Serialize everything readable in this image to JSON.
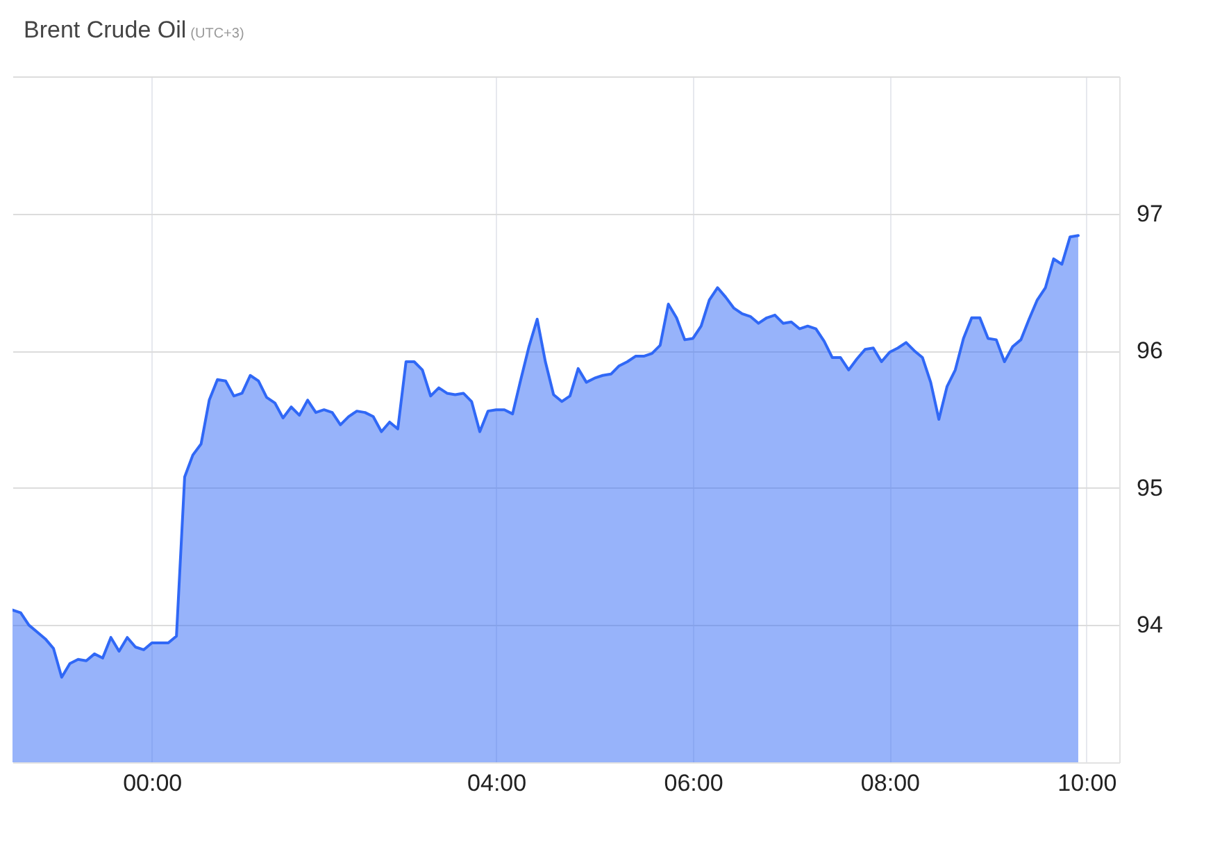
{
  "chart_data": {
    "type": "area",
    "title": "Brent Crude Oil",
    "subtitle": "(UTC+3)",
    "categories": [
      null,
      null,
      null,
      null,
      null,
      null,
      null,
      null,
      null,
      null,
      null,
      null,
      null,
      null,
      null,
      null,
      null,
      "00:00",
      null,
      null,
      null,
      null,
      null,
      null,
      null,
      null,
      null,
      null,
      null,
      null,
      null,
      null,
      null,
      null,
      null,
      null,
      null,
      null,
      null,
      null,
      null,
      null,
      null,
      null,
      null,
      null,
      null,
      null,
      null,
      null,
      null,
      null,
      null,
      null,
      null,
      null,
      null,
      null,
      null,
      "04:00",
      null,
      null,
      null,
      null,
      null,
      null,
      null,
      null,
      null,
      null,
      null,
      null,
      null,
      null,
      null,
      null,
      null,
      null,
      null,
      null,
      null,
      null,
      null,
      "06:00",
      null,
      null,
      null,
      null,
      null,
      null,
      null,
      null,
      null,
      null,
      null,
      null,
      null,
      null,
      null,
      null,
      null,
      null,
      null,
      null,
      null,
      null,
      null,
      "08:00",
      null,
      null,
      null,
      null,
      null,
      null,
      null,
      null,
      null,
      null,
      null,
      null,
      null,
      null,
      null,
      null,
      null,
      null,
      null,
      null,
      null,
      null,
      null,
      "10:00"
    ],
    "series": [
      {
        "color": "#3068f6",
        "values": [
          94.11,
          94.09,
          94.0,
          93.95,
          93.9,
          93.83,
          93.62,
          93.72,
          93.75,
          93.74,
          93.79,
          93.76,
          93.91,
          93.81,
          93.91,
          93.84,
          93.82,
          93.87,
          93.87,
          93.87,
          93.92,
          95.08,
          95.24,
          95.32,
          95.64,
          95.79,
          95.78,
          95.67,
          95.69,
          95.82,
          95.78,
          95.66,
          95.62,
          95.51,
          95.59,
          95.53,
          95.64,
          95.55,
          95.57,
          95.55,
          95.46,
          95.52,
          95.56,
          95.55,
          95.52,
          95.41,
          95.48,
          95.43,
          95.92,
          95.92,
          95.86,
          95.67,
          95.73,
          95.69,
          95.68,
          95.69,
          95.63,
          95.41,
          95.56,
          95.57,
          95.57,
          95.54,
          95.79,
          96.03,
          96.23,
          95.92,
          95.68,
          95.63,
          95.67,
          95.87,
          95.77,
          95.8,
          95.82,
          95.83,
          95.89,
          95.92,
          95.96,
          95.96,
          95.98,
          96.04,
          96.34,
          96.24,
          96.08,
          96.09,
          96.18,
          96.37,
          96.46,
          96.39,
          96.31,
          96.27,
          96.25,
          96.2,
          96.24,
          96.26,
          96.2,
          96.21,
          96.16,
          96.18,
          96.16,
          96.07,
          95.95,
          95.95,
          95.86,
          95.94,
          96.01,
          96.02,
          95.92,
          95.99,
          96.02,
          96.06,
          96.0,
          95.95,
          95.77,
          95.5,
          95.74,
          95.86,
          96.09,
          96.24,
          96.24,
          96.09,
          96.08,
          95.92,
          96.03,
          96.08,
          96.23,
          96.37,
          96.46,
          96.67,
          96.63,
          96.83,
          96.84,
          null
        ]
      }
    ],
    "ylim": [
      93,
      98
    ],
    "yticks": [
      94,
      95,
      96,
      97,
      {
        "value": 98,
        "label": null
      }
    ],
    "grid": true
  }
}
